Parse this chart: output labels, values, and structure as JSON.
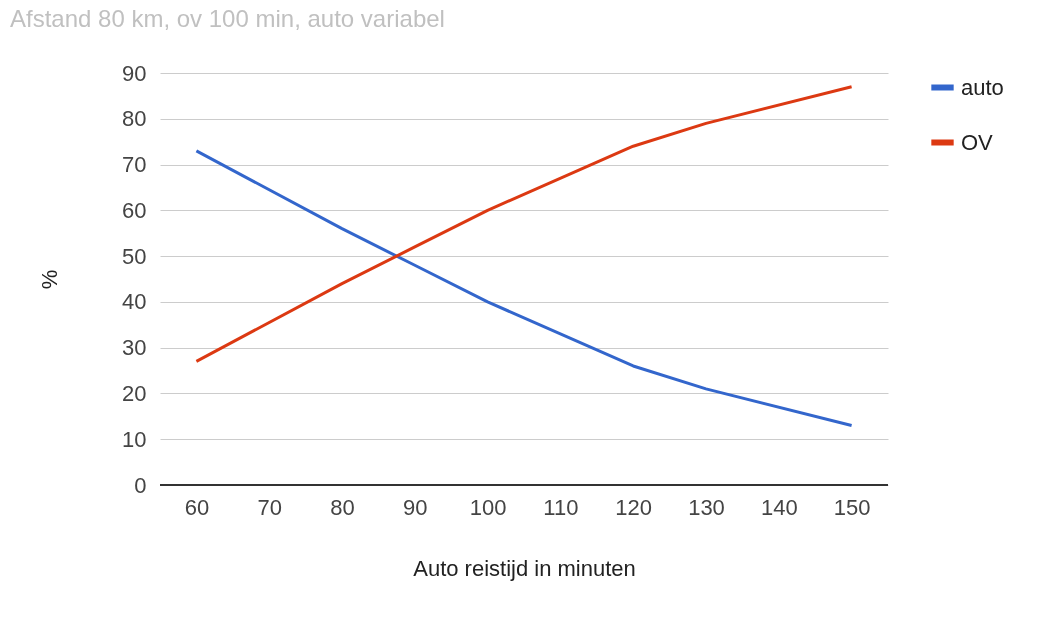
{
  "chart_data": {
    "type": "line",
    "title": "Afstand 80 km, ov 100 min, auto variabel",
    "xlabel": "Auto reistijd in minuten",
    "ylabel": "%",
    "x": [
      60,
      80,
      90,
      100,
      120,
      130,
      150
    ],
    "series": [
      {
        "name": "auto",
        "color": "#3366cc",
        "values": [
          73,
          56,
          48,
          40,
          26,
          21,
          13
        ]
      },
      {
        "name": "OV",
        "color": "#dc3912",
        "values": [
          27,
          44,
          52,
          60,
          74,
          79,
          87
        ]
      }
    ],
    "xlim": [
      55,
      155
    ],
    "xticks": [
      60,
      70,
      80,
      90,
      100,
      110,
      120,
      130,
      140,
      150
    ],
    "ylim": [
      0,
      90
    ],
    "yticks": [
      0,
      10,
      20,
      30,
      40,
      50,
      60,
      70,
      80,
      90
    ],
    "grid": "y",
    "legend": "right",
    "marker": "none",
    "line_style": "solid"
  }
}
